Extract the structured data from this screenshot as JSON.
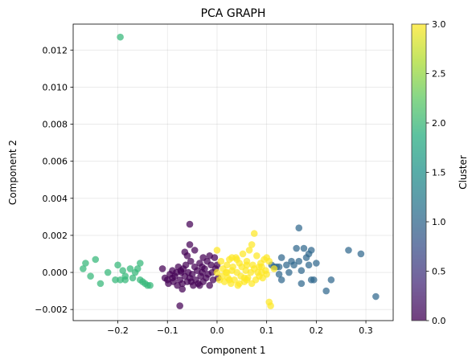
{
  "chart_data": {
    "type": "scatter",
    "title": "PCA GRAPH",
    "xlabel": "Component 1",
    "ylabel": "Component 2",
    "xlim": [
      -0.29,
      0.355
    ],
    "ylim": [
      -0.0026,
      0.0134
    ],
    "xticks": [
      -0.2,
      -0.1,
      0.0,
      0.1,
      0.2,
      0.3
    ],
    "xtick_labels": [
      "−0.2",
      "−0.1",
      "0.0",
      "0.1",
      "0.2",
      "0.3"
    ],
    "yticks": [
      -0.002,
      0.0,
      0.002,
      0.004,
      0.006,
      0.008,
      0.01,
      0.012
    ],
    "ytick_labels": [
      "−0.002",
      "0.000",
      "0.002",
      "0.004",
      "0.006",
      "0.008",
      "0.010",
      "0.012"
    ],
    "grid": true,
    "colorbar": {
      "label": "Cluster",
      "range": [
        0.0,
        3.0
      ],
      "ticks": [
        0.0,
        0.5,
        1.0,
        1.5,
        2.0,
        2.5,
        3.0
      ],
      "tick_labels": [
        "0.0",
        "0.5",
        "1.0",
        "1.5",
        "2.0",
        "2.5",
        "3.0"
      ],
      "colormap": "viridis"
    },
    "cluster_colors": [
      "#440154",
      "#31688e",
      "#35b779",
      "#fde725"
    ],
    "series": [
      {
        "cluster": 0,
        "points": [
          [
            -0.11,
            0.0002
          ],
          [
            -0.105,
            -0.0003
          ],
          [
            -0.1,
            -0.0004
          ],
          [
            -0.098,
            -0.0006
          ],
          [
            -0.095,
            -0.0001
          ],
          [
            -0.09,
            0.0001
          ],
          [
            -0.088,
            -0.0005
          ],
          [
            -0.085,
            -0.0002
          ],
          [
            -0.082,
            0.0
          ],
          [
            -0.08,
            -0.0007
          ],
          [
            -0.078,
            0.0003
          ],
          [
            -0.075,
            -0.0004
          ],
          [
            -0.073,
            0.0001
          ],
          [
            -0.07,
            -0.0006
          ],
          [
            -0.068,
            0.0002
          ],
          [
            -0.065,
            -0.0002
          ],
          [
            -0.063,
            0.0004
          ],
          [
            -0.06,
            -0.0005
          ],
          [
            -0.058,
            0.0
          ],
          [
            -0.055,
            -0.0003
          ],
          [
            -0.053,
            0.0006
          ],
          [
            -0.05,
            -0.0001
          ],
          [
            -0.048,
            -0.0007
          ],
          [
            -0.045,
            0.0003
          ],
          [
            -0.043,
            -0.0004
          ],
          [
            -0.04,
            0.0001
          ],
          [
            -0.038,
            -0.0006
          ],
          [
            -0.035,
            0.0005
          ],
          [
            -0.033,
            -0.0002
          ],
          [
            -0.03,
            0.0
          ],
          [
            -0.028,
            -0.0005
          ],
          [
            -0.025,
            0.0002
          ],
          [
            -0.022,
            -0.0003
          ],
          [
            -0.02,
            0.0006
          ],
          [
            -0.018,
            -0.0001
          ],
          [
            -0.015,
            -0.0007
          ],
          [
            -0.012,
            0.0004
          ],
          [
            -0.01,
            0.0
          ],
          [
            -0.008,
            -0.0004
          ],
          [
            -0.005,
            0.0008
          ],
          [
            -0.003,
            0.0002
          ],
          [
            -0.06,
            0.0009
          ],
          [
            -0.045,
            0.0012
          ],
          [
            -0.028,
            0.0008
          ],
          [
            -0.015,
            0.0009
          ],
          [
            -0.09,
            -0.0003
          ],
          [
            -0.072,
            0.0
          ],
          [
            -0.052,
            -0.0005
          ],
          [
            -0.035,
            -0.0007
          ],
          [
            -0.065,
            0.0011
          ],
          [
            -0.07,
            -0.0009
          ],
          [
            -0.03,
            0.0003
          ],
          [
            -0.075,
            -0.0018
          ],
          [
            -0.055,
            0.0015
          ],
          [
            -0.055,
            0.0026
          ],
          [
            0.0,
            0.0004
          ],
          [
            0.002,
            -0.0003
          ]
        ]
      },
      {
        "cluster": 1,
        "points": [
          [
            0.11,
            0.0004
          ],
          [
            0.115,
            0.0003
          ],
          [
            0.12,
            0.0003
          ],
          [
            0.125,
            -0.0001
          ],
          [
            0.13,
            0.0008
          ],
          [
            0.14,
            0.0004
          ],
          [
            0.145,
            0.0
          ],
          [
            0.15,
            0.0006
          ],
          [
            0.155,
            0.0004
          ],
          [
            0.16,
            0.0013
          ],
          [
            0.165,
            0.0006
          ],
          [
            0.165,
            0.0024
          ],
          [
            0.17,
            -0.0006
          ],
          [
            0.17,
            0.0001
          ],
          [
            0.175,
            0.0013
          ],
          [
            0.18,
            0.0008
          ],
          [
            0.185,
            0.001
          ],
          [
            0.19,
            0.0012
          ],
          [
            0.19,
            -0.0004
          ],
          [
            0.195,
            -0.0004
          ],
          [
            0.2,
            0.0005
          ],
          [
            0.22,
            -0.001
          ],
          [
            0.23,
            -0.0004
          ],
          [
            0.265,
            0.0012
          ],
          [
            0.29,
            0.001
          ],
          [
            0.32,
            -0.0013
          ],
          [
            0.13,
            -0.0004
          ],
          [
            0.185,
            0.0004
          ],
          [
            0.125,
            0.0003
          ]
        ]
      },
      {
        "cluster": 2,
        "points": [
          [
            -0.195,
            0.0127
          ],
          [
            -0.27,
            0.0002
          ],
          [
            -0.265,
            0.0005
          ],
          [
            -0.255,
            -0.0002
          ],
          [
            -0.245,
            0.0007
          ],
          [
            -0.235,
            -0.0006
          ],
          [
            -0.22,
            0.0
          ],
          [
            -0.205,
            -0.0004
          ],
          [
            -0.2,
            0.0004
          ],
          [
            -0.195,
            -0.0004
          ],
          [
            -0.19,
            0.0001
          ],
          [
            -0.185,
            -0.0002
          ],
          [
            -0.185,
            -0.0004
          ],
          [
            -0.175,
            0.0002
          ],
          [
            -0.17,
            -0.0003
          ],
          [
            -0.165,
            0.0
          ],
          [
            -0.16,
            0.0002
          ],
          [
            -0.155,
            0.0005
          ],
          [
            -0.155,
            -0.0004
          ],
          [
            -0.15,
            -0.0005
          ],
          [
            -0.145,
            -0.0006
          ],
          [
            -0.14,
            -0.0007
          ],
          [
            -0.135,
            -0.0007
          ]
        ]
      },
      {
        "cluster": 3,
        "points": [
          [
            0.0,
            0.0
          ],
          [
            0.005,
            -0.0004
          ],
          [
            0.008,
            0.0006
          ],
          [
            0.01,
            -0.0002
          ],
          [
            0.012,
            0.0002
          ],
          [
            0.015,
            -0.0005
          ],
          [
            0.018,
            0.0
          ],
          [
            0.02,
            0.0004
          ],
          [
            0.022,
            -0.0003
          ],
          [
            0.025,
            0.0007
          ],
          [
            0.028,
            -0.0006
          ],
          [
            0.03,
            0.0001
          ],
          [
            0.032,
            0.0003
          ],
          [
            0.035,
            -0.0004
          ],
          [
            0.038,
            0.0008
          ],
          [
            0.04,
            0.0
          ],
          [
            0.042,
            -0.0007
          ],
          [
            0.045,
            0.0005
          ],
          [
            0.048,
            -0.0002
          ],
          [
            0.05,
            0.0003
          ],
          [
            0.052,
            0.001
          ],
          [
            0.055,
            -0.0005
          ],
          [
            0.058,
            0.0001
          ],
          [
            0.06,
            0.0006
          ],
          [
            0.062,
            -0.0003
          ],
          [
            0.065,
            0.0012
          ],
          [
            0.068,
            0.0
          ],
          [
            0.07,
            -0.0006
          ],
          [
            0.072,
            0.0004
          ],
          [
            0.075,
            0.0002
          ],
          [
            0.078,
            -0.0004
          ],
          [
            0.08,
            0.0009
          ],
          [
            0.082,
            0.0
          ],
          [
            0.085,
            -0.0002
          ],
          [
            0.088,
            0.0005
          ],
          [
            0.09,
            0.0
          ],
          [
            0.092,
            -0.0003
          ],
          [
            0.095,
            0.0007
          ],
          [
            0.098,
            0.0001
          ],
          [
            0.1,
            -0.0001
          ],
          [
            0.105,
            0.0006
          ],
          [
            0.03,
            0.0008
          ],
          [
            0.045,
            -0.0006
          ],
          [
            0.07,
            0.0015
          ],
          [
            0.075,
            0.0021
          ],
          [
            0.06,
            0.0004
          ],
          [
            0.02,
            0.0
          ],
          [
            0.055,
            -0.0003
          ],
          [
            0.085,
            0.0003
          ],
          [
            0.1,
            0.0008
          ],
          [
            0.105,
            -0.0016
          ],
          [
            0.108,
            -0.0018
          ],
          [
            0.0,
            0.0012
          ],
          [
            0.06,
            -0.0004
          ],
          [
            0.04,
            0.0007
          ],
          [
            0.025,
            -0.0004
          ],
          [
            0.09,
            0.0003
          ],
          [
            0.115,
            0.0002
          ]
        ]
      }
    ]
  }
}
